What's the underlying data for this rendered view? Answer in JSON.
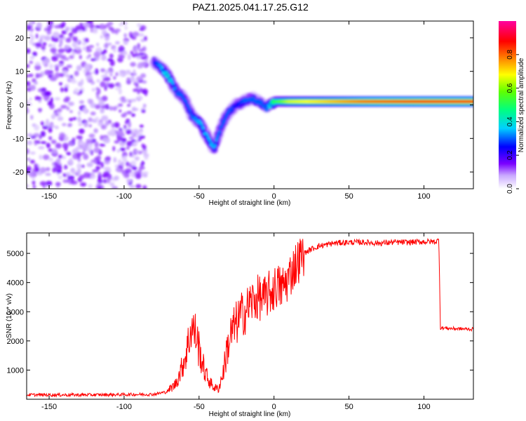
{
  "title": "PAZ1.2025.041.17.25.G12",
  "chart_data": [
    {
      "type": "heatmap",
      "xlabel": "Height of straight line (km)",
      "ylabel": "Frequency (Hz)",
      "xlim": [
        -165,
        133
      ],
      "ylim": [
        -25,
        25
      ],
      "xticks": [
        -150,
        -100,
        -50,
        0,
        50,
        100
      ],
      "yticks": [
        -20,
        -10,
        0,
        10,
        20
      ],
      "grid": false,
      "colorbar": {
        "label": "Normalized spectral amplitude",
        "range": [
          0,
          1
        ],
        "ticks": [
          0.0,
          0.2,
          0.4,
          0.6,
          0.8
        ],
        "colors": [
          "#ffffff",
          "#7a00ff",
          "#0000ff",
          "#00d0ff",
          "#00ff80",
          "#60ff00",
          "#ffff00",
          "#ff8000",
          "#ff0000",
          "#ff00a0"
        ]
      },
      "ridge": {
        "description_points_height_km": [
          -80,
          -75,
          -70,
          -65,
          -60,
          -55,
          -50,
          -45,
          -40,
          -35,
          -30,
          -25,
          -20,
          -15,
          -10,
          -5,
          0,
          10,
          30,
          60,
          100,
          133
        ],
        "frequency_hz": [
          13,
          11,
          8,
          4,
          2,
          -3,
          -5,
          -9,
          -13,
          -6,
          -2,
          0,
          1,
          2,
          1,
          -1,
          1,
          1,
          1,
          1,
          1,
          1
        ],
        "amplitude": [
          0.25,
          0.35,
          0.4,
          0.3,
          0.3,
          0.3,
          0.35,
          0.35,
          0.35,
          0.3,
          0.3,
          0.25,
          0.3,
          0.3,
          0.3,
          0.3,
          0.5,
          0.65,
          0.7,
          0.8,
          0.85,
          0.85
        ]
      }
    },
    {
      "type": "line",
      "xlabel": "Height of straight line (km)",
      "ylabel": "SNR (10 * v/v)",
      "xlim": [
        -165,
        133
      ],
      "ylim": [
        0,
        5700
      ],
      "xticks": [
        -150,
        -100,
        -50,
        0,
        50,
        100
      ],
      "yticks": [
        1000,
        2000,
        3000,
        4000,
        5000
      ],
      "grid": false,
      "color": "#ff0000",
      "series": [
        {
          "x": [
            -165,
            -120,
            -80,
            -72,
            -66,
            -62,
            -58,
            -55,
            -52,
            -49,
            -46,
            -43,
            -40,
            -37,
            -34,
            -31,
            -28,
            -25,
            -22,
            -19,
            -16,
            -13,
            -10,
            -7,
            -4,
            -1,
            2,
            5,
            8,
            11,
            14,
            17,
            20,
            25,
            30,
            35,
            40,
            50,
            60,
            70,
            80,
            90,
            100,
            108,
            110,
            111,
            120,
            133
          ],
          "y": [
            150,
            150,
            170,
            250,
            500,
            1000,
            1700,
            2500,
            2200,
            1500,
            900,
            600,
            400,
            350,
            900,
            1800,
            2300,
            2600,
            2900,
            3000,
            3300,
            3400,
            3500,
            3400,
            3600,
            3700,
            3900,
            3800,
            4000,
            4300,
            4600,
            4800,
            5000,
            5150,
            5250,
            5300,
            5350,
            5380,
            5380,
            5350,
            5380,
            5380,
            5400,
            5400,
            5450,
            2450,
            2420,
            2400
          ]
        }
      ]
    }
  ]
}
